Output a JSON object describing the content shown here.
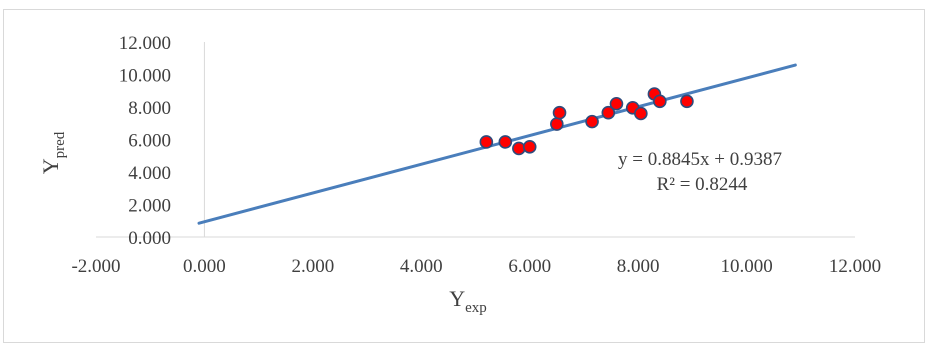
{
  "chart_data": {
    "type": "scatter",
    "xlabel": {
      "main": "Y",
      "sub": "exp"
    },
    "ylabel": {
      "main": "Y",
      "sub": "pred"
    },
    "xlim": [
      -2,
      12
    ],
    "ylim": [
      0,
      12
    ],
    "x_ticks": [
      "-2.000",
      "0.000",
      "2.000",
      "4.000",
      "6.000",
      "8.000",
      "10.000",
      "12.000"
    ],
    "y_ticks": [
      "0.000",
      "2.000",
      "4.000",
      "6.000",
      "8.000",
      "10.000",
      "12.000"
    ],
    "grid": false,
    "legend": "none",
    "points": [
      {
        "x": 5.2,
        "y": 5.85
      },
      {
        "x": 5.55,
        "y": 5.85
      },
      {
        "x": 5.8,
        "y": 5.45
      },
      {
        "x": 6.0,
        "y": 5.55
      },
      {
        "x": 6.5,
        "y": 6.95
      },
      {
        "x": 6.55,
        "y": 7.65
      },
      {
        "x": 7.15,
        "y": 7.1
      },
      {
        "x": 7.45,
        "y": 7.65
      },
      {
        "x": 7.6,
        "y": 8.2
      },
      {
        "x": 7.9,
        "y": 7.95
      },
      {
        "x": 8.05,
        "y": 7.6
      },
      {
        "x": 8.3,
        "y": 8.8
      },
      {
        "x": 8.4,
        "y": 8.35
      },
      {
        "x": 8.9,
        "y": 8.35
      }
    ],
    "trendline": {
      "type": "linear",
      "slope": 0.8845,
      "intercept": 0.9387,
      "x_range": [
        -0.1,
        10.9
      ],
      "equation_label": "y = 0.8845x + 0.9387",
      "r2_label": "R² = 0.8244"
    },
    "colors": {
      "marker_fill": "#ff0000",
      "marker_edge": "#2f4b7c",
      "trendline": "#4a7ebb",
      "axis": "#d9d9d9",
      "text": "#404040"
    }
  }
}
